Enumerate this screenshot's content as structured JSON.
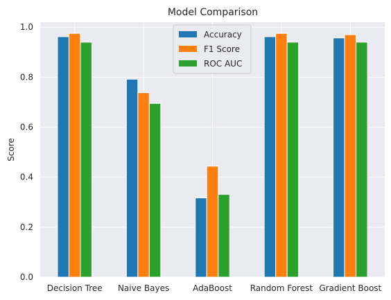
{
  "chart_data": {
    "type": "bar",
    "title": "Model Comparison",
    "xlabel": "",
    "ylabel": "Score",
    "categories": [
      "Decision Tree",
      "Naive Bayes",
      "AdaBoost",
      "Random Forest",
      "Gradient Boost"
    ],
    "series": [
      {
        "name": "Accuracy",
        "color": "#1f77b4",
        "values": [
          0.962,
          0.792,
          0.317,
          0.962,
          0.957
        ]
      },
      {
        "name": "F1 Score",
        "color": "#ff7f0e",
        "values": [
          0.975,
          0.738,
          0.444,
          0.975,
          0.97
        ]
      },
      {
        "name": "ROC AUC",
        "color": "#2ca02c",
        "values": [
          0.94,
          0.695,
          0.331,
          0.94,
          0.94
        ]
      }
    ],
    "ylim": [
      0,
      1.02
    ],
    "yticks": [
      "0.0",
      "0.2",
      "0.4",
      "0.6",
      "0.8",
      "1.0"
    ],
    "ytick_values": [
      0,
      0.2,
      0.4,
      0.6,
      0.8,
      1.0
    ],
    "grid": true,
    "legend_position": "top-center",
    "plot_background": "#eaeaf2",
    "grid_color": "#ffffff"
  }
}
